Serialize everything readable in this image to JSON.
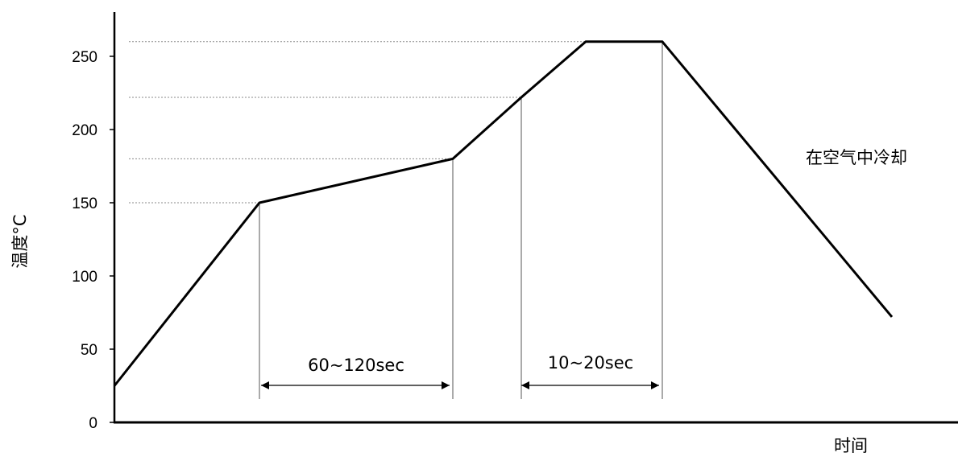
{
  "chart_data": {
    "type": "line",
    "ylabel": "温度°C",
    "xlabel": "时间",
    "ylim": [
      0,
      270
    ],
    "yticks": [
      0,
      50,
      100,
      150,
      200,
      250
    ],
    "xlim": [
      0,
      1000
    ],
    "series": [
      {
        "x": [
          0,
          180,
          420,
          505,
          585,
          680,
          965
        ],
        "y": [
          25,
          150,
          180,
          222,
          260,
          260,
          72
        ]
      }
    ],
    "reference_lines": [
      150,
      180,
      222,
      260
    ],
    "markers_x": [
      180,
      420,
      505,
      680
    ],
    "annotations": {
      "preheat_duration": "60~120sec",
      "peak_duration": "10~20sec",
      "cooling": "在空气中冷却"
    },
    "grid": false
  }
}
